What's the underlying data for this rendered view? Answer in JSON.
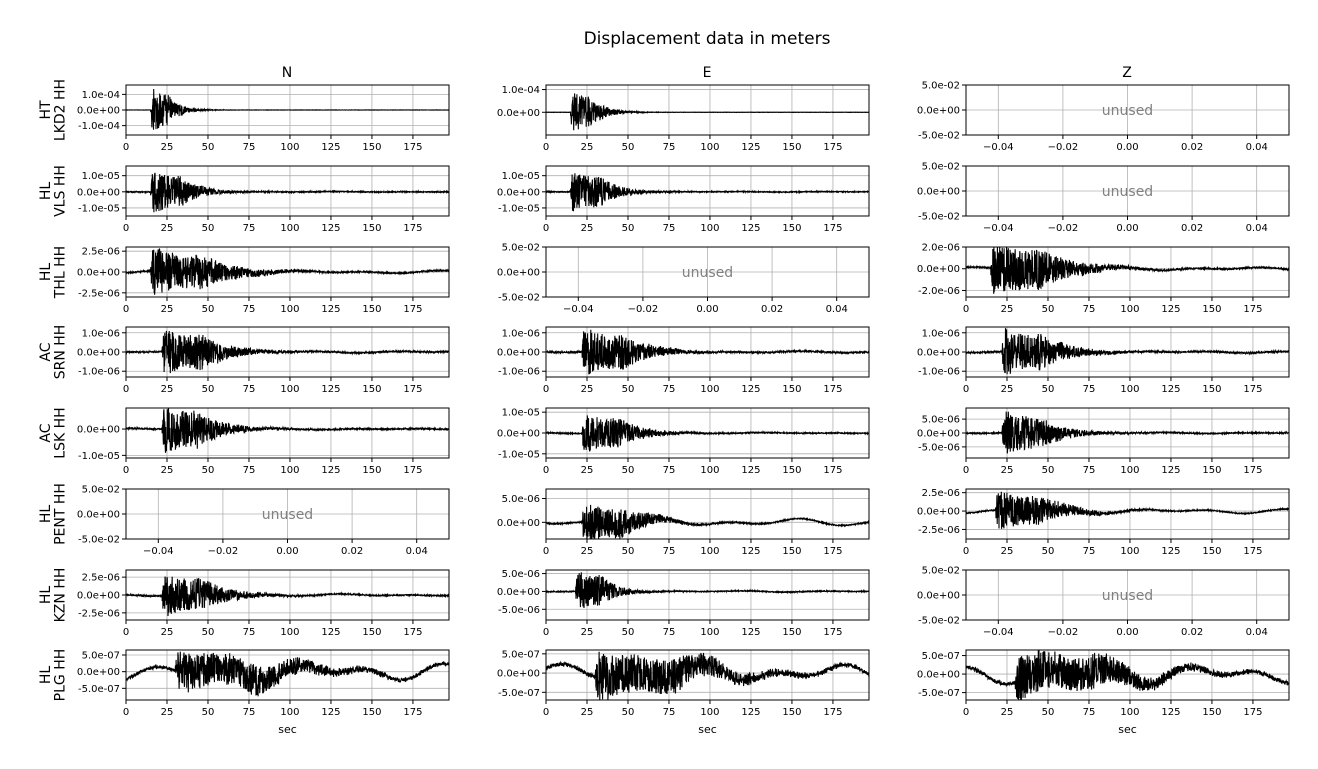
{
  "title": "Displacement data in meters",
  "columns": [
    "N",
    "E",
    "Z"
  ],
  "xlabel": "sec",
  "unused_label": "unused",
  "colors": {
    "trace": "#000000",
    "grid": "#b0b0b0",
    "unused_text": "#808080",
    "axes": "#000000"
  },
  "chart_data": {
    "type": "line",
    "title": "Displacement data in meters",
    "xlabel": "sec",
    "grid": true,
    "columns": [
      "N",
      "E",
      "Z"
    ],
    "rows": [
      {
        "network": "HT",
        "station": "LKD2 HH",
        "label": "HT\nLKD2 HH",
        "panels": [
          {
            "used": true,
            "xlim": [
              0,
              197
            ],
            "ylim": [
              -0.00016,
              0.00016
            ],
            "yticks": [
              -0.0001,
              0,
              0.0001
            ],
            "yticklabels": [
              "-1.0e-04",
              "0.0e+00",
              "1.0e-04"
            ],
            "onset": 15,
            "peak": 0.00016,
            "decay": 8,
            "noise": 0.01,
            "drift": 0,
            "seed": 11
          },
          {
            "used": true,
            "xlim": [
              0,
              197
            ],
            "ylim": [
              -0.0001,
              0.00012
            ],
            "yticks": [
              0,
              0.0001
            ],
            "yticklabels": [
              "0.0e+00",
              "1.0e-04"
            ],
            "onset": 15,
            "peak": 0.0001,
            "decay": 10,
            "noise": 0.01,
            "drift": 0,
            "seed": 12
          },
          {
            "used": false,
            "xlim": [
              -0.05,
              0.05
            ],
            "ylim": [
              -0.05,
              0.05
            ],
            "xticks": [
              -0.04,
              -0.02,
              0,
              0.02,
              0.04
            ],
            "xticklabels": [
              "−0.04",
              "−0.02",
              "0.00",
              "0.02",
              "0.04"
            ],
            "yticks": [
              -0.05,
              0,
              0.05
            ],
            "yticklabels": [
              "-5.0e-02",
              "0.0e+00",
              "5.0e-02"
            ]
          }
        ]
      },
      {
        "network": "HL",
        "station": "VLS HH",
        "label": "HL\nVLS HH",
        "panels": [
          {
            "used": true,
            "xlim": [
              0,
              197
            ],
            "ylim": [
              -1.5e-05,
              1.6e-05
            ],
            "yticks": [
              -1e-05,
              0,
              1e-05
            ],
            "yticklabels": [
              "-1.0e-05",
              "0.0e+00",
              "1.0e-05"
            ],
            "onset": 15,
            "peak": 1.5e-05,
            "decay": 14,
            "noise": 0.04,
            "drift": 0.02,
            "seed": 21
          },
          {
            "used": true,
            "xlim": [
              0,
              197
            ],
            "ylim": [
              -1.5e-05,
              1.6e-05
            ],
            "yticks": [
              -1e-05,
              0,
              1e-05
            ],
            "yticklabels": [
              "-1.0e-05",
              "0.0e+00",
              "1.0e-05"
            ],
            "onset": 15,
            "peak": 1.4e-05,
            "decay": 14,
            "noise": 0.04,
            "drift": 0.02,
            "seed": 22
          },
          {
            "used": false,
            "xlim": [
              -0.05,
              0.05
            ],
            "ylim": [
              -0.05,
              0.05
            ],
            "xticks": [
              -0.04,
              -0.02,
              0,
              0.02,
              0.04
            ],
            "xticklabels": [
              "−0.04",
              "−0.02",
              "0.00",
              "0.02",
              "0.04"
            ],
            "yticks": [
              -0.05,
              0,
              0.05
            ],
            "yticklabels": [
              "-5.0e-02",
              "0.0e+00",
              "5.0e-02"
            ]
          }
        ]
      },
      {
        "network": "HL",
        "station": "THL HH",
        "label": "HL\nTHL HH",
        "panels": [
          {
            "used": true,
            "xlim": [
              0,
              197
            ],
            "ylim": [
              -3e-06,
              3e-06
            ],
            "yticks": [
              -2.5e-06,
              0,
              2.5e-06
            ],
            "yticklabels": [
              "-2.5e-06",
              "0.0e+00",
              "2.5e-06"
            ],
            "onset": 15,
            "peak": 3e-06,
            "decay": 25,
            "noise": 0.05,
            "drift": 0.1,
            "seed": 31
          },
          {
            "used": false,
            "xlim": [
              -0.05,
              0.05
            ],
            "ylim": [
              -0.05,
              0.05
            ],
            "xticks": [
              -0.04,
              -0.02,
              0,
              0.02,
              0.04
            ],
            "xticklabels": [
              "−0.04",
              "−0.02",
              "0.00",
              "0.02",
              "0.04"
            ],
            "yticks": [
              -0.05,
              0,
              0.05
            ],
            "yticklabels": [
              "-5.0e-02",
              "0.0e+00",
              "5.0e-02"
            ]
          },
          {
            "used": true,
            "xlim": [
              0,
              197
            ],
            "ylim": [
              -2.6e-06,
              2e-06
            ],
            "yticks": [
              -2e-06,
              0,
              2e-06
            ],
            "yticklabels": [
              "-2.0e-06",
              "0.0e+00",
              "2.0e-06"
            ],
            "onset": 15,
            "peak": 2.6e-06,
            "decay": 25,
            "noise": 0.05,
            "drift": 0.1,
            "seed": 32
          }
        ]
      },
      {
        "network": "AC",
        "station": "SRN HH",
        "label": "AC\nSRN HH",
        "panels": [
          {
            "used": true,
            "xlim": [
              0,
              197
            ],
            "ylim": [
              -1.3e-06,
              1.3e-06
            ],
            "yticks": [
              -1e-06,
              0,
              1e-06
            ],
            "yticklabels": [
              "-1.0e-06",
              "0.0e+00",
              "1.0e-06"
            ],
            "onset": 22,
            "peak": 1.3e-06,
            "decay": 20,
            "noise": 0.06,
            "drift": 0.06,
            "seed": 41
          },
          {
            "used": true,
            "xlim": [
              0,
              197
            ],
            "ylim": [
              -1.3e-06,
              1.3e-06
            ],
            "yticks": [
              -1e-06,
              0,
              1e-06
            ],
            "yticklabels": [
              "-1.0e-06",
              "0.0e+00",
              "1.0e-06"
            ],
            "onset": 22,
            "peak": 1.3e-06,
            "decay": 20,
            "noise": 0.06,
            "drift": 0.06,
            "seed": 42
          },
          {
            "used": true,
            "xlim": [
              0,
              197
            ],
            "ylim": [
              -1.3e-06,
              1.3e-06
            ],
            "yticks": [
              -1e-06,
              0,
              1e-06
            ],
            "yticklabels": [
              "-1.0e-06",
              "0.0e+00",
              "1.0e-06"
            ],
            "onset": 22,
            "peak": 1.3e-06,
            "decay": 20,
            "noise": 0.06,
            "drift": 0.06,
            "seed": 43
          }
        ]
      },
      {
        "network": "AC",
        "station": "LSK HH",
        "label": "AC\nLSK HH",
        "panels": [
          {
            "used": true,
            "xlim": [
              0,
              197
            ],
            "ylim": [
              -1.1e-05,
              8e-06
            ],
            "yticks": [
              -1e-05,
              0
            ],
            "yticklabels": [
              "-1.0e-05",
              "0.0e+00"
            ],
            "onset": 22,
            "peak": 1e-05,
            "decay": 18,
            "noise": 0.05,
            "drift": 0.04,
            "seed": 51
          },
          {
            "used": true,
            "xlim": [
              0,
              197
            ],
            "ylim": [
              -1.2e-05,
              1.2e-05
            ],
            "yticks": [
              -1e-05,
              0,
              1e-05
            ],
            "yticklabels": [
              "-1.0e-05",
              "0.0e+00",
              "1.0e-05"
            ],
            "onset": 22,
            "peak": 1e-05,
            "decay": 18,
            "noise": 0.05,
            "drift": 0.04,
            "seed": 52
          },
          {
            "used": true,
            "xlim": [
              0,
              197
            ],
            "ylim": [
              -9e-06,
              9e-06
            ],
            "yticks": [
              -5e-06,
              0,
              5e-06
            ],
            "yticklabels": [
              "-5.0e-06",
              "0.0e+00",
              "5.0e-06"
            ],
            "onset": 22,
            "peak": 8.5e-06,
            "decay": 18,
            "noise": 0.05,
            "drift": 0.04,
            "seed": 53
          }
        ]
      },
      {
        "network": "HL",
        "station": "PENT HH",
        "label": "HL\nPENT HH",
        "panels": [
          {
            "used": false,
            "xlim": [
              -0.05,
              0.05
            ],
            "ylim": [
              -0.05,
              0.05
            ],
            "xticks": [
              -0.04,
              -0.02,
              0,
              0.02,
              0.04
            ],
            "xticklabels": [
              "−0.04",
              "−0.02",
              "0.00",
              "0.02",
              "0.04"
            ],
            "yticks": [
              -0.05,
              0,
              0.05
            ],
            "yticklabels": [
              "-5.0e-02",
              "0.0e+00",
              "5.0e-02"
            ]
          },
          {
            "used": true,
            "xlim": [
              0,
              197
            ],
            "ylim": [
              -3.5e-06,
              7e-06
            ],
            "yticks": [
              0,
              5e-06
            ],
            "yticklabels": [
              "0.0e+00",
              "5.0e-06"
            ],
            "onset": 22,
            "peak": 4.5e-06,
            "decay": 20,
            "noise": 0.05,
            "drift": 0.3,
            "seed": 61
          },
          {
            "used": true,
            "xlim": [
              0,
              197
            ],
            "ylim": [
              -3.8e-06,
              3e-06
            ],
            "yticks": [
              -2.5e-06,
              0,
              2.5e-06
            ],
            "yticklabels": [
              "-2.5e-06",
              "0.0e+00",
              "2.5e-06"
            ],
            "onset": 18,
            "peak": 2.8e-06,
            "decay": 22,
            "noise": 0.05,
            "drift": 0.2,
            "seed": 62
          }
        ]
      },
      {
        "network": "HL",
        "station": "KZN HH",
        "label": "HL\nKZN HH",
        "panels": [
          {
            "used": true,
            "xlim": [
              0,
              197
            ],
            "ylim": [
              -3.5e-06,
              3.5e-06
            ],
            "yticks": [
              -2.5e-06,
              0,
              2.5e-06
            ],
            "yticklabels": [
              "-2.5e-06",
              "0.0e+00",
              "2.5e-06"
            ],
            "onset": 22,
            "peak": 3.2e-06,
            "decay": 20,
            "noise": 0.05,
            "drift": 0.08,
            "seed": 71
          },
          {
            "used": true,
            "xlim": [
              0,
              197
            ],
            "ylim": [
              -8e-06,
              6e-06
            ],
            "yticks": [
              -5e-06,
              0,
              5e-06
            ],
            "yticklabels": [
              "-5.0e-06",
              "0.0e+00",
              "5.0e-06"
            ],
            "onset": 18,
            "peak": 6.5e-06,
            "decay": 12,
            "noise": 0.04,
            "drift": 0.05,
            "seed": 72
          },
          {
            "used": false,
            "xlim": [
              -0.05,
              0.05
            ],
            "ylim": [
              -0.05,
              0.05
            ],
            "xticks": [
              -0.04,
              -0.02,
              0,
              0.02,
              0.04
            ],
            "xticklabels": [
              "−0.04",
              "−0.02",
              "0.00",
              "0.02",
              "0.04"
            ],
            "yticks": [
              -0.05,
              0,
              0.05
            ],
            "yticklabels": [
              "-5.0e-02",
              "0.0e+00",
              "5.0e-02"
            ]
          }
        ]
      },
      {
        "network": "HL",
        "station": "PLG HH",
        "label": "HL\nPLG HH",
        "panels": [
          {
            "used": true,
            "xlim": [
              0,
              197
            ],
            "ylim": [
              -8.5e-07,
              6.5e-07
            ],
            "yticks": [
              -5e-07,
              0,
              5e-07
            ],
            "yticklabels": [
              "-5.0e-07",
              "0.0e+00",
              "5.0e-07"
            ],
            "onset": 30,
            "peak": 6.5e-07,
            "decay": 40,
            "noise": 0.15,
            "drift": 0.7,
            "seed": 81
          },
          {
            "used": true,
            "xlim": [
              0,
              197
            ],
            "ylim": [
              -7e-07,
              6e-07
            ],
            "yticks": [
              -5e-07,
              0,
              5e-07
            ],
            "yticklabels": [
              "-5.0e-07",
              "0.0e+00",
              "5.0e-07"
            ],
            "onset": 30,
            "peak": 6.5e-07,
            "decay": 40,
            "noise": 0.15,
            "drift": 0.6,
            "seed": 82
          },
          {
            "used": true,
            "xlim": [
              0,
              197
            ],
            "ylim": [
              -7e-07,
              6.5e-07
            ],
            "yticks": [
              -5e-07,
              0,
              5e-07
            ],
            "yticklabels": [
              "-5.0e-07",
              "0.0e+00",
              "5.0e-07"
            ],
            "onset": 30,
            "peak": 6.5e-07,
            "decay": 40,
            "noise": 0.15,
            "drift": 0.7,
            "seed": 83
          }
        ]
      }
    ],
    "time_xticks": [
      0,
      25,
      50,
      75,
      100,
      125,
      150,
      175
    ],
    "time_xticklabels": [
      "0",
      "25",
      "50",
      "75",
      "100",
      "125",
      "150",
      "175"
    ]
  }
}
